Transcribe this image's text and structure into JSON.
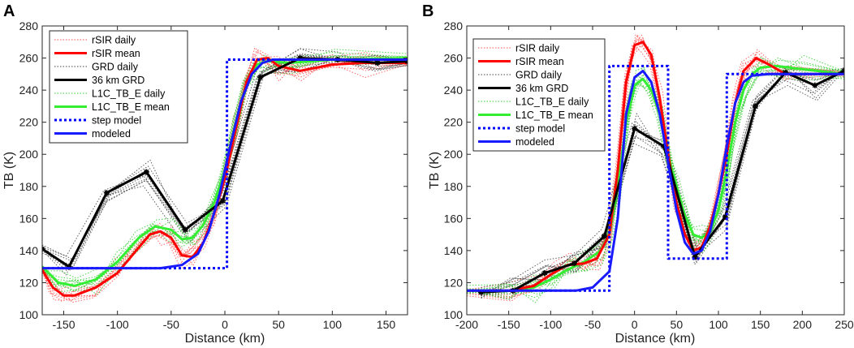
{
  "chart_data": [
    {
      "type": "line",
      "panel": "A",
      "xlabel": "Distance (km)",
      "ylabel": "TB (K)",
      "xlim": [
        -170,
        170
      ],
      "ylim": [
        100,
        280
      ],
      "xticks": [
        -150,
        -100,
        -50,
        0,
        50,
        100,
        150
      ],
      "yticks": [
        100,
        120,
        140,
        160,
        180,
        200,
        220,
        240,
        260,
        280
      ],
      "legend_position": "top-left",
      "legend": [
        {
          "label": "rSIR daily",
          "color": "#ff4d4d",
          "style": "dotted",
          "width": 1
        },
        {
          "label": "rSIR mean",
          "color": "#ff0000",
          "style": "solid",
          "width": 3
        },
        {
          "label": "GRD daily",
          "color": "#444444",
          "style": "dotted",
          "width": 1
        },
        {
          "label": "36 km GRD",
          "color": "#000000",
          "style": "solid",
          "width": 3
        },
        {
          "label": "L1C_TB_E daily",
          "color": "#33cc33",
          "style": "dotted",
          "width": 1
        },
        {
          "label": "L1C_TB_E mean",
          "color": "#33ee33",
          "style": "solid",
          "width": 3
        },
        {
          "label": "step model",
          "color": "#0000ff",
          "style": "dashed",
          "width": 3
        },
        {
          "label": "modeled",
          "color": "#1a1aff",
          "style": "solid",
          "width": 3
        }
      ],
      "series": [
        {
          "name": "rSIR mean",
          "x": [
            -170,
            -160,
            -150,
            -140,
            -120,
            -100,
            -85,
            -70,
            -60,
            -50,
            -40,
            -30,
            -20,
            -10,
            0,
            10,
            20,
            30,
            40,
            50,
            70,
            100,
            130,
            170
          ],
          "y": [
            128,
            117,
            112,
            112,
            117,
            126,
            138,
            150,
            152,
            148,
            137,
            136,
            145,
            163,
            185,
            215,
            245,
            259,
            260,
            255,
            252,
            256,
            257,
            257
          ]
        },
        {
          "name": "36 km GRD",
          "x": [
            -170,
            -145,
            -110,
            -73,
            -37,
            -2,
            33,
            70,
            105,
            142,
            170
          ],
          "y": [
            141,
            130,
            176,
            189,
            153,
            171,
            248,
            260,
            259,
            257,
            258
          ]
        },
        {
          "name": "L1C_TB_E mean",
          "x": [
            -170,
            -155,
            -140,
            -120,
            -100,
            -80,
            -65,
            -50,
            -40,
            -30,
            -20,
            -10,
            0,
            10,
            20,
            30,
            40,
            60,
            100,
            170
          ],
          "y": [
            130,
            120,
            118,
            122,
            133,
            148,
            155,
            153,
            147,
            148,
            156,
            170,
            190,
            220,
            245,
            256,
            258,
            257,
            259,
            260
          ]
        },
        {
          "name": "step model",
          "x": [
            -170,
            2,
            2,
            170
          ],
          "y": [
            129,
            129,
            259,
            259
          ]
        },
        {
          "name": "modeled",
          "x": [
            -170,
            -60,
            -40,
            -25,
            -15,
            -5,
            5,
            15,
            25,
            35,
            45,
            60,
            100,
            170
          ],
          "y": [
            129,
            129,
            131,
            138,
            152,
            175,
            205,
            233,
            250,
            257,
            259,
            259,
            259,
            259
          ]
        }
      ]
    },
    {
      "type": "line",
      "panel": "B",
      "xlabel": "Distance (km)",
      "ylabel": "TB (K)",
      "xlim": [
        -200,
        250
      ],
      "ylim": [
        100,
        280
      ],
      "xticks": [
        -200,
        -150,
        -100,
        -50,
        0,
        50,
        100,
        150,
        200,
        250
      ],
      "yticks": [
        100,
        120,
        140,
        160,
        180,
        200,
        220,
        240,
        260,
        280
      ],
      "legend_position": "top-left",
      "legend": [
        {
          "label": "rSIR daily",
          "color": "#ff4d4d",
          "style": "dotted",
          "width": 1
        },
        {
          "label": "rSIR mean",
          "color": "#ff0000",
          "style": "solid",
          "width": 3
        },
        {
          "label": "GRD daily",
          "color": "#444444",
          "style": "dotted",
          "width": 1
        },
        {
          "label": "36 km GRD",
          "color": "#000000",
          "style": "solid",
          "width": 3
        },
        {
          "label": "L1C_TB_E daily",
          "color": "#33cc33",
          "style": "dotted",
          "width": 1
        },
        {
          "label": "L1C_TB_E mean",
          "color": "#33ee33",
          "style": "solid",
          "width": 3
        },
        {
          "label": "step model",
          "color": "#0000ff",
          "style": "dashed",
          "width": 3
        },
        {
          "label": "modeled",
          "color": "#1a1aff",
          "style": "solid",
          "width": 3
        }
      ],
      "series": [
        {
          "name": "rSIR mean",
          "x": [
            -200,
            -150,
            -120,
            -100,
            -80,
            -60,
            -45,
            -30,
            -20,
            -10,
            0,
            10,
            20,
            30,
            40,
            50,
            60,
            70,
            80,
            90,
            100,
            110,
            120,
            130,
            145,
            160,
            180,
            250
          ],
          "y": [
            115,
            115,
            118,
            125,
            131,
            132,
            135,
            150,
            190,
            245,
            268,
            270,
            262,
            235,
            200,
            170,
            150,
            140,
            142,
            155,
            175,
            200,
            232,
            252,
            260,
            256,
            250,
            250
          ]
        },
        {
          "name": "36 km GRD",
          "x": [
            -183,
            -145,
            -107,
            -72,
            -36,
            0,
            35,
            72,
            108,
            144,
            180,
            215,
            250
          ],
          "y": [
            114,
            115,
            126,
            132,
            149,
            216,
            205,
            136,
            161,
            230,
            251,
            243,
            252
          ]
        },
        {
          "name": "L1C_TB_E mean",
          "x": [
            -200,
            -150,
            -120,
            -100,
            -80,
            -60,
            -40,
            -30,
            -20,
            -10,
            0,
            10,
            20,
            30,
            40,
            50,
            60,
            70,
            80,
            90,
            100,
            110,
            120,
            130,
            140,
            150,
            170,
            200,
            250
          ],
          "y": [
            115,
            115,
            117,
            122,
            128,
            133,
            140,
            150,
            180,
            220,
            243,
            247,
            240,
            225,
            200,
            180,
            162,
            150,
            148,
            152,
            165,
            190,
            220,
            240,
            250,
            254,
            255,
            253,
            250
          ]
        },
        {
          "name": "step model",
          "x": [
            -200,
            -30,
            -30,
            40,
            40,
            110,
            110,
            250
          ],
          "y": [
            115,
            115,
            255,
            255,
            135,
            135,
            250,
            250
          ]
        },
        {
          "name": "modeled",
          "x": [
            -200,
            -70,
            -50,
            -30,
            -20,
            -10,
            0,
            10,
            20,
            30,
            40,
            50,
            60,
            70,
            80,
            90,
            100,
            110,
            120,
            130,
            140,
            160,
            200,
            250
          ],
          "y": [
            115,
            115,
            117,
            127,
            160,
            225,
            248,
            252,
            245,
            225,
            195,
            165,
            145,
            138,
            140,
            152,
            175,
            205,
            232,
            245,
            249,
            250,
            250,
            250
          ]
        }
      ]
    }
  ]
}
